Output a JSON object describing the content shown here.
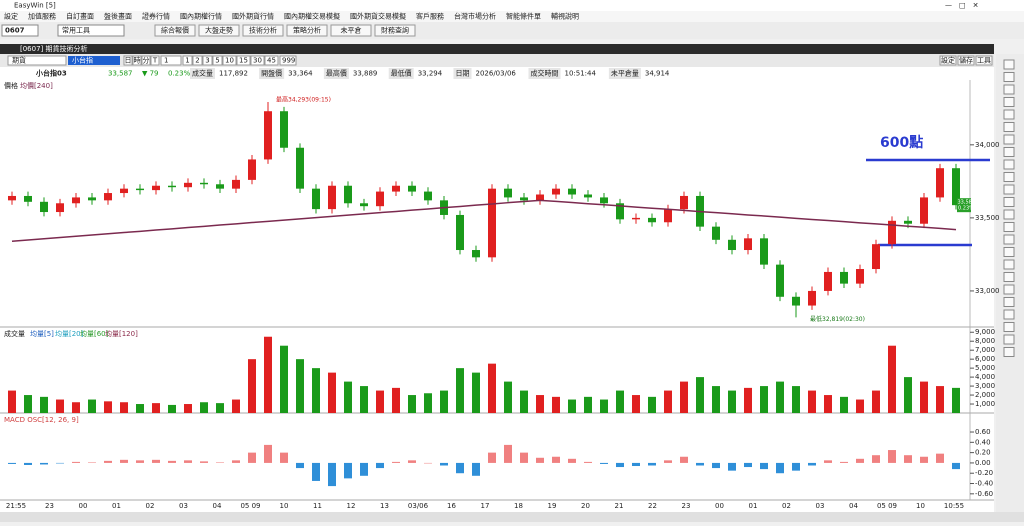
{
  "app": {
    "title": "EasyWin [5]",
    "menu": [
      "設定",
      "加值服務",
      "自訂畫面",
      "盤後畫面",
      "證券行情",
      "國內期權行情",
      "國外期貨行情",
      "國內期權交易模擬",
      "國外期貨交易模擬",
      "客戶服務",
      "台灣市場分析",
      "智能條件單",
      "輔視說明"
    ],
    "code": "0607",
    "toolset": "常用工具",
    "buttons": [
      "綜合報價",
      "大盤走勢",
      "技術分析",
      "策略分析",
      "未平倉",
      "財務查詢"
    ]
  },
  "window": {
    "title": "[0607] 期貨技術分析",
    "market": "期貨",
    "symbol": "小台指",
    "periods": [
      "日",
      "時",
      "分",
      "T"
    ],
    "period_value": "1",
    "intervals": [
      "1",
      "2",
      "3",
      "5",
      "10",
      "15",
      "30",
      "45"
    ],
    "count": "999",
    "tools": [
      "設定",
      "儲存",
      "工具"
    ]
  },
  "quote": {
    "name": "小台指03",
    "price": "33,587",
    "change": "▼ 79",
    "change_pct": "0.23%",
    "fields": [
      {
        "label": "成交量",
        "value": "117,892"
      },
      {
        "label": "開盤價",
        "value": "33,364"
      },
      {
        "label": "最高價",
        "value": "33,889"
      },
      {
        "label": "最低價",
        "value": "33,294"
      },
      {
        "label": "日期",
        "value": "2026/03/06"
      },
      {
        "label": "成交時間",
        "value": "10:51:44"
      },
      {
        "label": "未平倉量",
        "value": "34,914"
      }
    ]
  },
  "chart_data": [
    {
      "type": "candlestick",
      "title": "價格",
      "up_color": "#e02020",
      "down_color": "#1a9a1a",
      "candles": [
        [
          33620,
          33680,
          33590,
          33650
        ],
        [
          33650,
          33680,
          33580,
          33610
        ],
        [
          33610,
          33640,
          33510,
          33540
        ],
        [
          33540,
          33630,
          33510,
          33600
        ],
        [
          33600,
          33670,
          33570,
          33640
        ],
        [
          33640,
          33670,
          33590,
          33620
        ],
        [
          33620,
          33700,
          33590,
          33670
        ],
        [
          33670,
          33730,
          33640,
          33700
        ],
        [
          33700,
          33730,
          33660,
          33690
        ],
        [
          33690,
          33750,
          33660,
          33720
        ],
        [
          33720,
          33750,
          33680,
          33710
        ],
        [
          33710,
          33770,
          33680,
          33740
        ],
        [
          33740,
          33770,
          33700,
          33730
        ],
        [
          33730,
          33760,
          33670,
          33700
        ],
        [
          33700,
          33790,
          33670,
          33760
        ],
        [
          33760,
          33930,
          33730,
          33900
        ],
        [
          33900,
          34293,
          33870,
          34230
        ],
        [
          34230,
          34260,
          33950,
          33980
        ],
        [
          33980,
          34010,
          33670,
          33700
        ],
        [
          33700,
          33730,
          33530,
          33560
        ],
        [
          33560,
          33750,
          33530,
          33720
        ],
        [
          33720,
          33750,
          33570,
          33600
        ],
        [
          33600,
          33630,
          33550,
          33580
        ],
        [
          33580,
          33710,
          33550,
          33680
        ],
        [
          33680,
          33750,
          33650,
          33720
        ],
        [
          33720,
          33750,
          33650,
          33680
        ],
        [
          33680,
          33710,
          33590,
          33620
        ],
        [
          33620,
          33650,
          33490,
          33520
        ],
        [
          33520,
          33550,
          33250,
          33280
        ],
        [
          33280,
          33310,
          33200,
          33230
        ],
        [
          33230,
          33730,
          33200,
          33700
        ],
        [
          33700,
          33730,
          33610,
          33640
        ],
        [
          33640,
          33670,
          33590,
          33620
        ],
        [
          33620,
          33690,
          33590,
          33660
        ],
        [
          33660,
          33730,
          33630,
          33700
        ],
        [
          33700,
          33730,
          33630,
          33660
        ],
        [
          33660,
          33690,
          33610,
          33640
        ],
        [
          33640,
          33670,
          33570,
          33600
        ],
        [
          33600,
          33630,
          33460,
          33490
        ],
        [
          33490,
          33530,
          33460,
          33500
        ],
        [
          33500,
          33530,
          33440,
          33470
        ],
        [
          33470,
          33590,
          33440,
          33560
        ],
        [
          33560,
          33680,
          33530,
          33650
        ],
        [
          33650,
          33680,
          33410,
          33440
        ],
        [
          33440,
          33470,
          33320,
          33350
        ],
        [
          33350,
          33380,
          33250,
          33280
        ],
        [
          33280,
          33390,
          33250,
          33360
        ],
        [
          33360,
          33390,
          33150,
          33180
        ],
        [
          33180,
          33210,
          32930,
          32960
        ],
        [
          32960,
          32990,
          32819,
          32900
        ],
        [
          32900,
          33030,
          32870,
          33000
        ],
        [
          33000,
          33160,
          32970,
          33130
        ],
        [
          33130,
          33160,
          33020,
          33050
        ],
        [
          33050,
          33180,
          33020,
          33150
        ],
        [
          33150,
          33350,
          33120,
          33320
        ],
        [
          33320,
          33510,
          33290,
          33480
        ],
        [
          33480,
          33510,
          33430,
          33460
        ],
        [
          33460,
          33670,
          33430,
          33640
        ],
        [
          33640,
          33870,
          33610,
          33840
        ],
        [
          33840,
          33870,
          33557,
          33587
        ]
      ],
      "series": [
        {
          "name": "均價[240]",
          "color": "#7b2a4f",
          "values": [
            33340,
            33349,
            33357,
            33366,
            33374,
            33383,
            33391,
            33400,
            33408,
            33417,
            33425,
            33434,
            33442,
            33451,
            33459,
            33468,
            33476,
            33485,
            33493,
            33502,
            33510,
            33519,
            33527,
            33536,
            33544,
            33553,
            33561,
            33570,
            33578,
            33587,
            33595,
            33604,
            33612,
            33620,
            33613,
            33605,
            33597,
            33590,
            33582,
            33574,
            33566,
            33559,
            33551,
            33543,
            33536,
            33528,
            33520,
            33513,
            33505,
            33497,
            33489,
            33482,
            33474,
            33466,
            33459,
            33451,
            33443,
            33436,
            33428,
            33420
          ]
        }
      ],
      "ylim": [
        32760,
        34430
      ],
      "yticks": [
        {
          "value": 34000,
          "label": "34,000"
        },
        {
          "value": 33500,
          "label": "33,500"
        },
        {
          "value": 33000,
          "label": "33,000"
        }
      ],
      "high_label": "最高34,293(09:15)",
      "low_label": "最低32,819(02:30)",
      "annotation": "600點",
      "last_price": "33,587",
      "last_pct": "0.23%",
      "x_labels": [
        "21:55",
        "23",
        "00",
        "01",
        "02",
        "03",
        "04",
        "05 09",
        "10",
        "11",
        "12",
        "13",
        "03/06",
        "16",
        "17",
        "18",
        "19",
        "20",
        "21",
        "22",
        "23",
        "00",
        "01",
        "02",
        "03",
        "04",
        "05 09",
        "10",
        "10:55"
      ]
    },
    {
      "type": "bar",
      "title": "成交量",
      "legend": [
        {
          "name": "均量[5]",
          "color": "#1f5fbf"
        },
        {
          "name": "均量[20]",
          "color": "#1f9fbf"
        },
        {
          "name": "均量[60]",
          "color": "#2a9a2a"
        },
        {
          "name": "均量[120]",
          "color": "#8a2a4a"
        }
      ],
      "values": [
        2500,
        2000,
        1800,
        1500,
        1200,
        1500,
        1300,
        1200,
        1000,
        1100,
        900,
        1000,
        1200,
        1100,
        1500,
        6000,
        8500,
        7500,
        6000,
        5000,
        4500,
        3500,
        3000,
        2500,
        2800,
        2000,
        2200,
        2500,
        5000,
        4500,
        5500,
        3500,
        2500,
        2000,
        1800,
        1500,
        1800,
        1500,
        2500,
        2000,
        1800,
        2500,
        3500,
        4000,
        3000,
        2500,
        2800,
        3000,
        3500,
        3000,
        2500,
        2000,
        1800,
        1500,
        2500,
        7500,
        4000,
        3500,
        3000,
        2800
      ],
      "ylim": [
        0,
        9250
      ],
      "yticks": [
        {
          "value": 9000,
          "label": "9,000"
        },
        {
          "value": 8000,
          "label": "8,000"
        },
        {
          "value": 7000,
          "label": "7,000"
        },
        {
          "value": 6000,
          "label": "6,000"
        },
        {
          "value": 5000,
          "label": "5,000"
        },
        {
          "value": 4000,
          "label": "4,000"
        },
        {
          "value": 3000,
          "label": "3,000"
        },
        {
          "value": 2000,
          "label": "2,000"
        },
        {
          "value": 1000,
          "label": "1,000"
        }
      ]
    },
    {
      "type": "bar",
      "title": "MACD OSC[12, 26, 9]",
      "pos_color": "#f08080",
      "neg_color": "#2f8fd8",
      "values": [
        -0.02,
        -0.04,
        -0.03,
        -0.01,
        0.02,
        0.01,
        0.04,
        0.06,
        0.05,
        0.06,
        0.04,
        0.05,
        0.03,
        0.01,
        0.05,
        0.2,
        0.35,
        0.2,
        -0.1,
        -0.35,
        -0.45,
        -0.3,
        -0.25,
        -0.1,
        0.02,
        0.05,
        0.0,
        -0.05,
        -0.2,
        -0.25,
        0.2,
        0.35,
        0.2,
        0.1,
        0.12,
        0.08,
        0.02,
        -0.02,
        -0.08,
        -0.06,
        -0.05,
        0.05,
        0.12,
        -0.05,
        -0.1,
        -0.15,
        -0.08,
        -0.12,
        -0.2,
        -0.15,
        -0.05,
        0.05,
        0.02,
        0.08,
        0.15,
        0.25,
        0.15,
        0.12,
        0.18,
        -0.12
      ],
      "ylim": [
        -0.72,
        0.95
      ],
      "yticks": [
        {
          "value": 0.6,
          "label": "0.60"
        },
        {
          "value": 0.4,
          "label": "0.40"
        },
        {
          "value": 0.2,
          "label": "0.20"
        },
        {
          "value": 0,
          "label": "0.00"
        },
        {
          "value": -0.2,
          "label": "-0.20"
        },
        {
          "value": -0.4,
          "label": "-0.40"
        },
        {
          "value": -0.6,
          "label": "-0.60"
        }
      ]
    }
  ]
}
